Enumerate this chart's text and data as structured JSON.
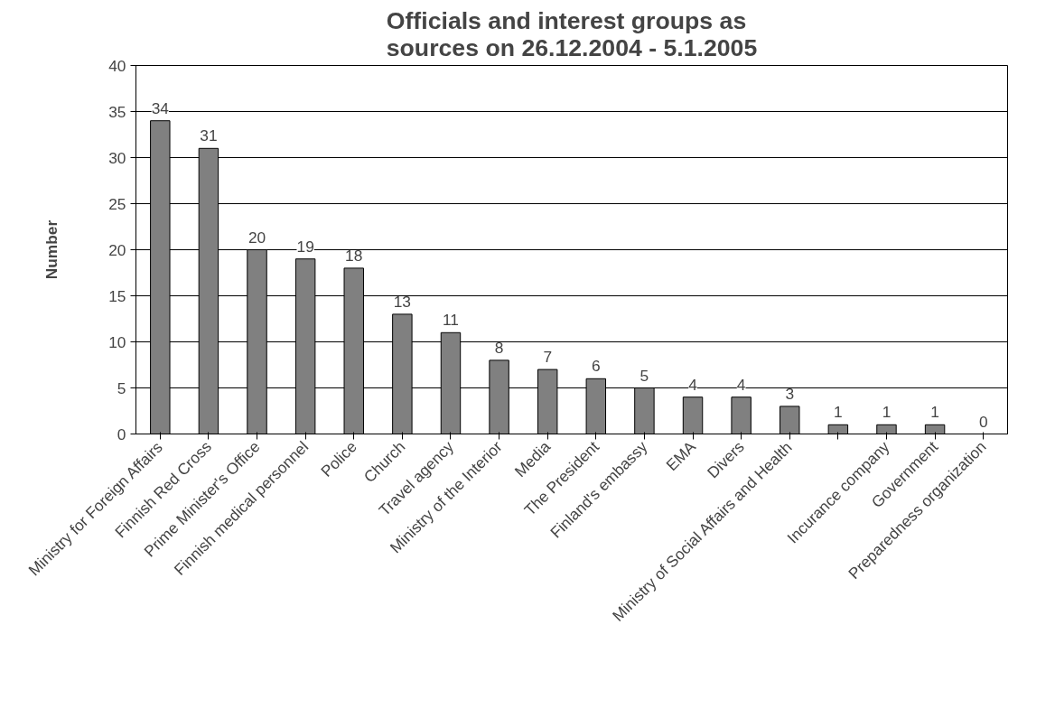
{
  "chart_data": {
    "type": "bar",
    "title": "Officials and interest groups as sources on 26.12.2004 - 5.1.2005",
    "ylabel": "Number",
    "categories": [
      "Ministry for Foreign Affairs",
      "Finnish Red Cross",
      "Prime Minister's Office",
      "Finnish medical personnel",
      "Police",
      "Church",
      "Travel agency",
      "Ministry of the Interior",
      "Media",
      "The President",
      "Finland's embassy",
      "EMA",
      "Divers",
      "Ministry of Social Affairs and Health",
      null,
      "Incurance company",
      "Government",
      "Preparedness organization"
    ],
    "values": [
      34,
      31,
      20,
      19,
      18,
      13,
      11,
      8,
      7,
      6,
      5,
      4,
      4,
      3,
      1,
      1,
      1,
      0
    ],
    "color": "#808080",
    "ylim": [
      0,
      40
    ],
    "yticks": [
      0,
      5,
      10,
      15,
      20,
      25,
      30,
      35,
      40
    ],
    "grid": "y",
    "data_labels": true
  }
}
